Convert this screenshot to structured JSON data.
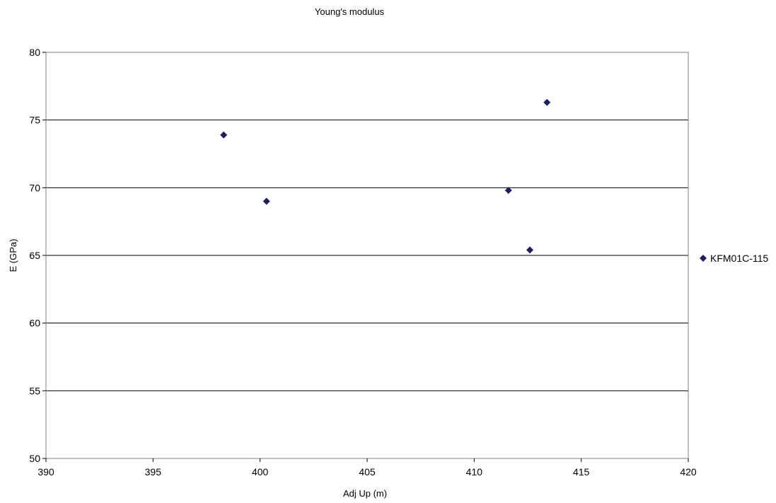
{
  "chart_data": {
    "type": "scatter",
    "title": "Young's modulus",
    "xlabel": "Adj Up (m)",
    "ylabel": "E (GPa)",
    "xlim": [
      390,
      420
    ],
    "ylim": [
      50,
      80
    ],
    "xticks": [
      390,
      395,
      400,
      405,
      410,
      415,
      420
    ],
    "yticks": [
      50,
      55,
      60,
      65,
      70,
      75,
      80
    ],
    "grid": "horizontal",
    "legend_position": "right",
    "series": [
      {
        "name": "KFM01C-115",
        "color": "#1f1f5c",
        "marker": "diamond",
        "points": [
          {
            "x": 398.3,
            "y": 73.9
          },
          {
            "x": 400.3,
            "y": 69.0
          },
          {
            "x": 411.6,
            "y": 69.8
          },
          {
            "x": 412.6,
            "y": 65.4
          },
          {
            "x": 413.4,
            "y": 76.3
          }
        ]
      }
    ]
  }
}
